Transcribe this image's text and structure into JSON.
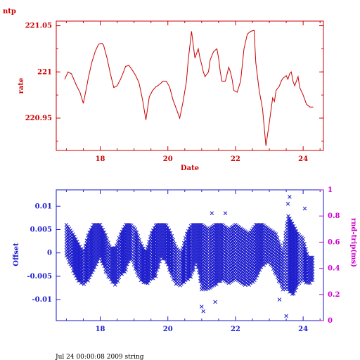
{
  "colors": {
    "rate": "#cc0000",
    "offset": "#1a1acc",
    "roundtrip": "#cc00cc",
    "footer": "#000000"
  },
  "footer_text": "Jul 24 00:00:08 2009 string",
  "chart_data": [
    {
      "type": "line",
      "title": "ntp",
      "xlabel": "Date",
      "ylabel": "rate",
      "xlim": [
        16.7,
        24.6
      ],
      "ylim": [
        220.915,
        221.055
      ],
      "xticks": [
        18,
        20,
        22,
        24
      ],
      "yticks": [
        220.95,
        221,
        221.05
      ],
      "x": [
        16.95,
        17.05,
        17.15,
        17.3,
        17.4,
        17.5,
        17.6,
        17.65,
        17.75,
        17.85,
        17.95,
        18.05,
        18.1,
        18.2,
        18.3,
        18.4,
        18.5,
        18.6,
        18.7,
        18.75,
        18.85,
        18.95,
        19.05,
        19.15,
        19.25,
        19.35,
        19.45,
        19.55,
        19.65,
        19.7,
        19.8,
        19.85,
        19.95,
        20.05,
        20.15,
        20.25,
        20.35,
        20.45,
        20.55,
        20.6,
        20.7,
        20.8,
        20.9,
        20.95,
        21.0,
        21.05,
        21.1,
        21.2,
        21.25,
        21.35,
        21.45,
        21.5,
        21.55,
        21.6,
        21.7,
        21.8,
        21.85,
        21.9,
        21.95,
        22.05,
        22.15,
        22.25,
        22.35,
        22.45,
        22.55,
        22.6,
        22.65,
        22.7,
        22.8,
        22.9,
        23.0,
        23.1,
        23.15,
        23.2,
        23.3,
        23.35,
        23.4,
        23.5,
        23.55,
        23.6,
        23.65,
        23.7,
        23.75,
        23.8,
        23.85,
        23.9,
        24.0,
        24.05,
        24.1,
        24.2,
        24.3
      ],
      "y": [
        220.992,
        221,
        220.998,
        220.985,
        220.978,
        220.966,
        220.984,
        220.994,
        221.01,
        221.022,
        221.03,
        221.031,
        221.029,
        221.015,
        220.998,
        220.983,
        220.985,
        220.992,
        221.001,
        221.006,
        221.007,
        221.002,
        220.996,
        220.988,
        220.97,
        220.948,
        220.973,
        220.98,
        220.984,
        220.985,
        220.988,
        220.99,
        220.99,
        220.984,
        220.97,
        220.96,
        220.95,
        220.968,
        220.99,
        221.012,
        221.044,
        221.015,
        221.025,
        221.015,
        221.008,
        221.0,
        220.995,
        221.0,
        221.013,
        221.022,
        221.025,
        221.015,
        221.0,
        220.99,
        220.99,
        221.005,
        221.0,
        220.992,
        220.98,
        220.978,
        220.99,
        221.025,
        221.041,
        221.044,
        221.045,
        221.01,
        220.995,
        220.98,
        220.96,
        220.92,
        220.945,
        220.972,
        220.968,
        220.98,
        220.985,
        220.99,
        220.993,
        220.996,
        220.992,
        220.998,
        221.0,
        220.99,
        220.985,
        220.99,
        220.995,
        220.983,
        220.975,
        220.97,
        220.965,
        220.962,
        220.962
      ],
      "series": [
        {
          "name": "",
          "color": "#cc0000"
        }
      ]
    },
    {
      "type": "scatter",
      "xlabel": "",
      "ylabel": "Offset",
      "y2label": "rnd-trip(ms)",
      "xlim": [
        16.7,
        24.6
      ],
      "ylim": [
        -0.0145,
        0.0135
      ],
      "y2lim": [
        0,
        1
      ],
      "xticks": [
        18,
        20,
        22,
        24
      ],
      "yticks": [
        -0.01,
        -0.005,
        0,
        0.005,
        0.01
      ],
      "y2ticks": [
        0,
        0.2,
        0.4,
        0.6,
        0.8,
        1
      ],
      "marker": "x",
      "offset_envelope": {
        "x": [
          17.0,
          17.2,
          17.35,
          17.5,
          17.65,
          17.8,
          18.0,
          18.15,
          18.3,
          18.45,
          18.6,
          18.75,
          18.9,
          19.05,
          19.2,
          19.35,
          19.5,
          19.65,
          19.8,
          19.95,
          20.1,
          20.25,
          20.4,
          20.55,
          20.7,
          20.85,
          21.0,
          21.2,
          21.4,
          21.6,
          21.8,
          22.0,
          22.2,
          22.4,
          22.6,
          22.8,
          23.0,
          23.2,
          23.4,
          23.55,
          23.7,
          23.85,
          24.0,
          24.15,
          24.3
        ],
        "upper": [
          0.006,
          0.004,
          0.002,
          0.0,
          0.004,
          0.006,
          0.006,
          0.004,
          0.001,
          0.001,
          0.004,
          0.006,
          0.006,
          0.005,
          0.002,
          0.0,
          0.004,
          0.006,
          0.006,
          0.006,
          0.004,
          0.001,
          0.0,
          0.004,
          0.006,
          0.006,
          0.006,
          0.005,
          0.006,
          0.006,
          0.005,
          0.006,
          0.005,
          0.004,
          0.006,
          0.006,
          0.005,
          0.004,
          0.0,
          0.008,
          0.006,
          0.004,
          0.003,
          -0.001,
          -0.001
        ],
        "lower": [
          -0.001,
          -0.004,
          -0.006,
          -0.007,
          -0.006,
          -0.004,
          -0.001,
          -0.004,
          -0.006,
          -0.007,
          -0.005,
          -0.004,
          -0.001,
          -0.004,
          -0.006,
          -0.007,
          -0.006,
          -0.005,
          -0.001,
          -0.002,
          -0.005,
          -0.007,
          -0.007,
          -0.006,
          -0.005,
          -0.002,
          -0.008,
          -0.008,
          -0.007,
          -0.006,
          -0.007,
          -0.006,
          -0.007,
          -0.007,
          -0.006,
          -0.003,
          -0.002,
          -0.005,
          -0.008,
          -0.008,
          -0.009,
          -0.007,
          -0.006,
          -0.007,
          -0.006
        ]
      },
      "offset_outliers": [
        {
          "x": 21.0,
          "y": -0.0115
        },
        {
          "x": 21.05,
          "y": -0.0125
        },
        {
          "x": 21.3,
          "y": 0.0085
        },
        {
          "x": 21.4,
          "y": -0.0105
        },
        {
          "x": 21.7,
          "y": 0.0085
        },
        {
          "x": 23.3,
          "y": -0.01
        },
        {
          "x": 23.5,
          "y": -0.0135
        },
        {
          "x": 23.55,
          "y": 0.0105
        },
        {
          "x": 23.6,
          "y": 0.012
        },
        {
          "x": 24.05,
          "y": 0.0095
        }
      ],
      "series": [
        {
          "name": "",
          "color": "#1a1acc"
        }
      ]
    }
  ]
}
